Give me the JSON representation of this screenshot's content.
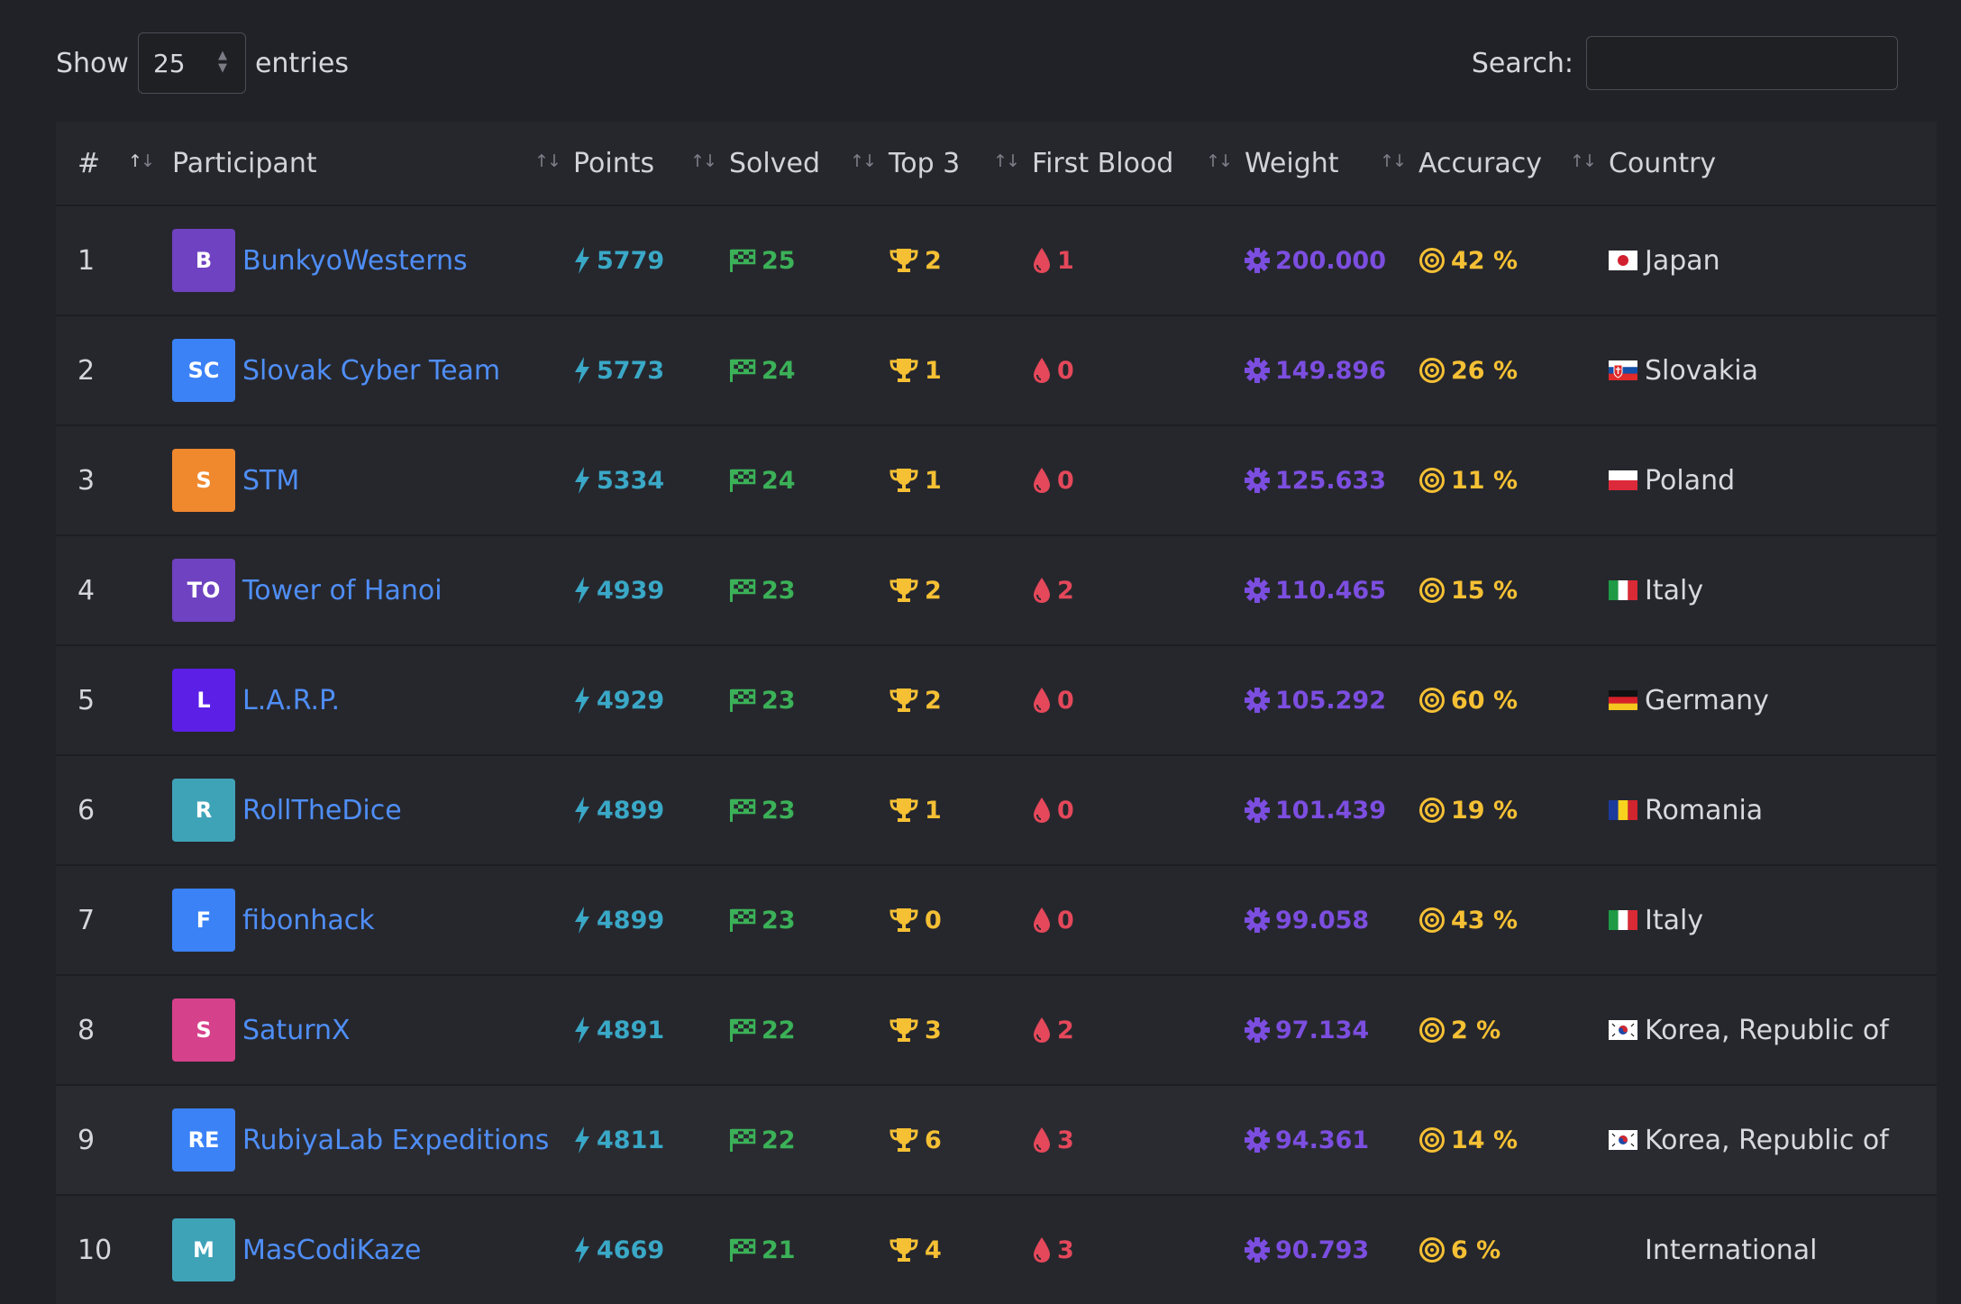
{
  "length_menu": {
    "show_label": "Show",
    "value": "25",
    "entries_label": "entries"
  },
  "search": {
    "label": "Search:",
    "value": ""
  },
  "columns": [
    "#",
    "Participant",
    "Points",
    "Solved",
    "Top 3",
    "First Blood",
    "Weight",
    "Accuracy",
    "Country"
  ],
  "rows": [
    {
      "rank": "1",
      "initials": "B",
      "avatar_color": "#6f42c1",
      "name": "BunkyoWesterns",
      "points": "5779",
      "solved": "25",
      "top3": "2",
      "first_blood": "1",
      "weight": "200.000",
      "accuracy": "42 %",
      "country": "Japan",
      "flag": "japan"
    },
    {
      "rank": "2",
      "initials": "SC",
      "avatar_color": "#3b82f6",
      "name": "Slovak Cyber Team",
      "points": "5773",
      "solved": "24",
      "top3": "1",
      "first_blood": "0",
      "weight": "149.896",
      "accuracy": "26 %",
      "country": "Slovakia",
      "flag": "slovakia"
    },
    {
      "rank": "3",
      "initials": "S",
      "avatar_color": "#f0882e",
      "name": "STM",
      "points": "5334",
      "solved": "24",
      "top3": "1",
      "first_blood": "0",
      "weight": "125.633",
      "accuracy": "11 %",
      "country": "Poland",
      "flag": "poland"
    },
    {
      "rank": "4",
      "initials": "TO",
      "avatar_color": "#6f42c1",
      "name": "Tower of Hanoi",
      "points": "4939",
      "solved": "23",
      "top3": "2",
      "first_blood": "2",
      "weight": "110.465",
      "accuracy": "15 %",
      "country": "Italy",
      "flag": "italy"
    },
    {
      "rank": "5",
      "initials": "L",
      "avatar_color": "#5b1fe6",
      "name": "L.A.R.P.",
      "points": "4929",
      "solved": "23",
      "top3": "2",
      "first_blood": "0",
      "weight": "105.292",
      "accuracy": "60 %",
      "country": "Germany",
      "flag": "germany"
    },
    {
      "rank": "6",
      "initials": "R",
      "avatar_color": "#3fa3b8",
      "name": "RollTheDice",
      "points": "4899",
      "solved": "23",
      "top3": "1",
      "first_blood": "0",
      "weight": "101.439",
      "accuracy": "19 %",
      "country": "Romania",
      "flag": "romania"
    },
    {
      "rank": "7",
      "initials": "F",
      "avatar_color": "#3b82f6",
      "name": "fibonhack",
      "points": "4899",
      "solved": "23",
      "top3": "0",
      "first_blood": "0",
      "weight": "99.058",
      "accuracy": "43 %",
      "country": "Italy",
      "flag": "italy"
    },
    {
      "rank": "8",
      "initials": "S",
      "avatar_color": "#d6418b",
      "name": "SaturnX",
      "points": "4891",
      "solved": "22",
      "top3": "3",
      "first_blood": "2",
      "weight": "97.134",
      "accuracy": "2 %",
      "country": "Korea, Republic of",
      "flag": "korea"
    },
    {
      "rank": "9",
      "initials": "RE",
      "avatar_color": "#3b82f6",
      "name": "RubiyaLab Expeditions",
      "points": "4811",
      "solved": "22",
      "top3": "6",
      "first_blood": "3",
      "weight": "94.361",
      "accuracy": "14 %",
      "country": "Korea, Republic of",
      "flag": "korea"
    },
    {
      "rank": "10",
      "initials": "M",
      "avatar_color": "#3fa3b8",
      "name": "MasCodiKaze",
      "points": "4669",
      "solved": "21",
      "top3": "4",
      "first_blood": "3",
      "weight": "90.793",
      "accuracy": "6 %",
      "country": "International",
      "flag": "none"
    }
  ],
  "colors": {
    "points": "#3aa8c7",
    "solved": "#3bb158",
    "top3": "#f5c034",
    "first_blood": "#e4485a",
    "weight": "#7c4ee0",
    "accuracy": "#f5c034",
    "link": "#4f8ef7"
  },
  "icons": {
    "points": "bolt-icon",
    "solved": "flag-checkered-icon",
    "top3": "trophy-icon",
    "first_blood": "blood-drop-icon",
    "weight": "gear-icon",
    "accuracy": "target-icon",
    "sort": "sort-arrows-icon",
    "select": "select-arrows-icon"
  }
}
